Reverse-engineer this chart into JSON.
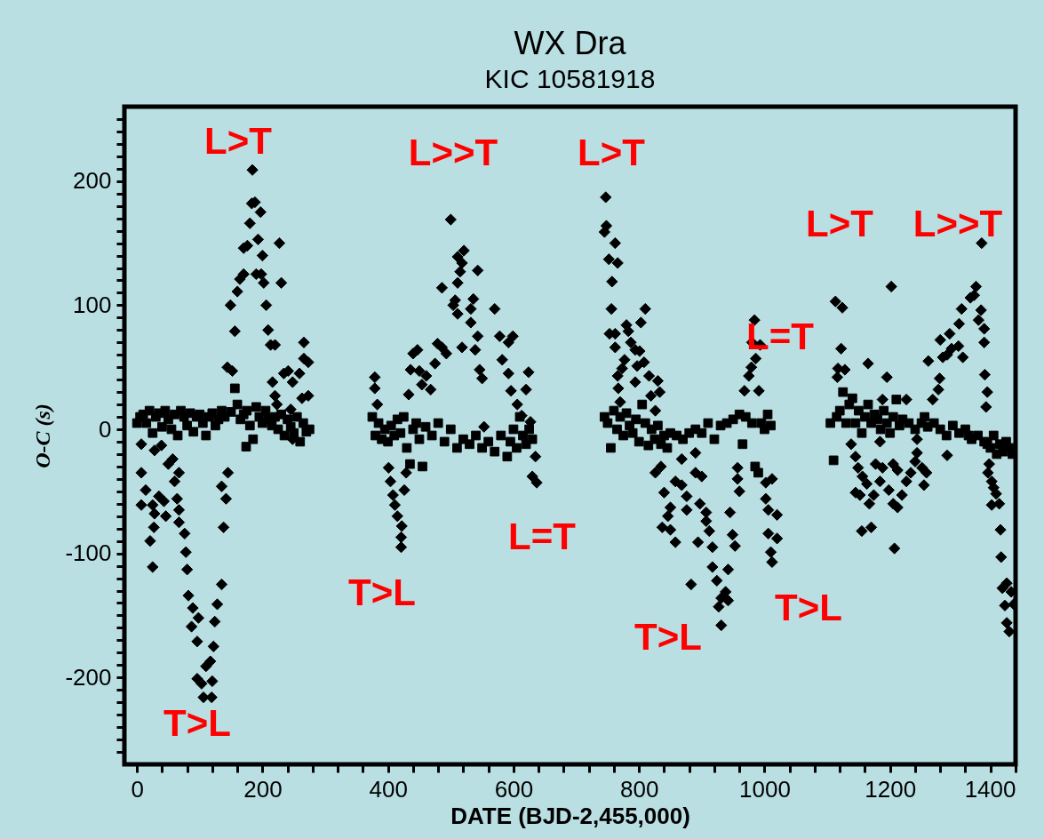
{
  "chart_data": {
    "type": "scatter",
    "title": "WX Dra",
    "subtitle": "KIC 10581918",
    "xlabel": "DATE (BJD-2,455,000)",
    "ylabel": "O-C (s)",
    "xlim": [
      -20,
      1400
    ],
    "ylim": [
      -270,
      260
    ],
    "grid": false,
    "xticks": [
      0,
      {
        "value": 40,
        "label": null
      },
      {
        "value": 80,
        "label": null
      },
      {
        "value": 120,
        "label": null
      },
      {
        "value": 160,
        "label": null
      },
      200,
      {
        "value": 240,
        "label": null
      },
      {
        "value": 280,
        "label": null
      },
      {
        "value": 320,
        "label": null
      },
      {
        "value": 360,
        "label": null
      },
      400,
      {
        "value": 440,
        "label": null
      },
      {
        "value": 480,
        "label": null
      },
      {
        "value": 520,
        "label": null
      },
      {
        "value": 560,
        "label": null
      },
      600,
      {
        "value": 640,
        "label": null
      },
      {
        "value": 680,
        "label": null
      },
      {
        "value": 720,
        "label": null
      },
      {
        "value": 760,
        "label": null
      },
      800,
      {
        "value": 840,
        "label": null
      },
      {
        "value": 880,
        "label": null
      },
      {
        "value": 920,
        "label": null
      },
      {
        "value": 960,
        "label": null
      },
      1000,
      {
        "value": 1040,
        "label": null
      },
      {
        "value": 1080,
        "label": null
      },
      {
        "value": 1120,
        "label": null
      },
      {
        "value": 1160,
        "label": null
      },
      1200,
      {
        "value": 1240,
        "label": null
      },
      {
        "value": 1280,
        "label": null
      },
      {
        "value": 1320,
        "label": null
      },
      {
        "value": 1360,
        "label": null
      },
      1400
    ],
    "yticks": [
      {
        "value": -260,
        "label": null
      },
      {
        "value": -250,
        "label": null
      },
      {
        "value": -240,
        "label": null
      },
      {
        "value": -230,
        "label": null
      },
      {
        "value": -220,
        "label": null
      },
      {
        "value": -210,
        "label": null
      },
      -200,
      {
        "value": -190,
        "label": null
      },
      {
        "value": -180,
        "label": null
      },
      {
        "value": -170,
        "label": null
      },
      {
        "value": -160,
        "label": null
      },
      {
        "value": -150,
        "label": null
      },
      {
        "value": -140,
        "label": null
      },
      {
        "value": -130,
        "label": null
      },
      {
        "value": -120,
        "label": null
      },
      {
        "value": -110,
        "label": null
      },
      -100,
      {
        "value": -90,
        "label": null
      },
      {
        "value": -80,
        "label": null
      },
      {
        "value": -70,
        "label": null
      },
      {
        "value": -60,
        "label": null
      },
      {
        "value": -50,
        "label": null
      },
      {
        "value": -40,
        "label": null
      },
      {
        "value": -30,
        "label": null
      },
      {
        "value": -20,
        "label": null
      },
      {
        "value": -10,
        "label": null
      },
      0,
      {
        "value": 10,
        "label": null
      },
      {
        "value": 20,
        "label": null
      },
      {
        "value": 30,
        "label": null
      },
      {
        "value": 40,
        "label": null
      },
      {
        "value": 50,
        "label": null
      },
      {
        "value": 60,
        "label": null
      },
      {
        "value": 70,
        "label": null
      },
      {
        "value": 80,
        "label": null
      },
      {
        "value": 90,
        "label": null
      },
      100,
      {
        "value": 110,
        "label": null
      },
      {
        "value": 120,
        "label": null
      },
      {
        "value": 130,
        "label": null
      },
      {
        "value": 140,
        "label": null
      },
      {
        "value": 150,
        "label": null
      },
      {
        "value": 160,
        "label": null
      },
      {
        "value": 170,
        "label": null
      },
      {
        "value": 180,
        "label": null
      },
      {
        "value": 190,
        "label": null
      },
      200,
      {
        "value": 210,
        "label": null
      },
      {
        "value": 220,
        "label": null
      },
      {
        "value": 230,
        "label": null
      },
      {
        "value": 240,
        "label": null
      },
      {
        "value": 250,
        "label": null
      }
    ],
    "series": [
      {
        "color": "#000000",
        "marker": "diamond",
        "x": [
          7,
          28,
          39,
          7,
          14,
          7,
          25,
          28,
          35,
          43,
          46,
          27,
          21,
          25,
          50,
          57,
          60,
          67,
          64,
          67,
          67,
          76,
          78,
          80,
          82,
          89,
          87,
          98,
          96,
          96,
          103,
          106,
          119,
          110,
          117,
          120,
          122,
          124,
          128,
          135,
          138,
          142,
          135,
          145,
          144,
          152,
          149,
          156,
          160,
          164,
          170,
          170,
          176,
          180,
          183,
          184,
          188,
          197,
          193,
          190,
          198,
          202,
          200,
          206,
          209,
          213,
          220,
          227,
          230,
          216,
          223,
          220,
          234,
          241,
          248,
          259,
          266,
          266,
          273,
          273,
          263,
          245,
          248,
          379,
          379,
          383,
          401,
          404,
          408,
          411,
          415,
          422,
          421,
          421,
          426,
          429,
          433,
          436,
          440,
          447,
          450,
          454,
          461,
          468,
          475,
          479,
          486,
          486,
          493,
          500,
          504,
          521,
          511,
          518,
          515,
          511,
          543,
          507,
          536,
          511,
          532,
          532,
          543,
          518,
          539,
          546,
          550,
          553,
          570,
          578,
          592,
          599,
          582,
          592,
          596,
          606,
          613,
          624,
          620,
          627,
          635,
          630,
          637,
          747,
          748,
          745,
          762,
          752,
          766,
          757,
          756,
          810,
          753,
          762,
          780,
          783,
          803,
          762,
          787,
          794,
          777,
          801,
          773,
          797,
          808,
          766,
          794,
          816,
          830,
          767,
          770,
          819,
          833,
          826,
          826,
          835,
          868,
          890,
          840,
          858,
          868,
          876,
          890,
          900,
          850,
          846,
          876,
          897,
          907,
          837,
          850,
          907,
          858,
          894,
          912,
          917,
          883,
          917,
          924,
          931,
          927,
          931,
          942,
          938,
          942,
          945,
          949,
          953,
          957,
          957,
          960,
          968,
          975,
          979,
          986,
          993,
          980,
          984,
          991,
          1002,
          1012,
          1002,
          1006,
          1020,
          1006,
          1020,
          1010,
          1012,
          1113,
          1124,
          1202,
          1122,
          1117,
          1128,
          1116,
          1165,
          1195,
          1138,
          1145,
          1149,
          1156,
          1163,
          1145,
          1152,
          1174,
          1167,
          1155,
          1170,
          1184,
          1177,
          1188,
          1184,
          1205,
          1212,
          1198,
          1205,
          1212,
          1219,
          1226,
          1233,
          1240,
          1243,
          1243,
          1251,
          1258,
          1254,
          1207,
          1188,
          1226,
          1261,
          1280,
          1279,
          1277,
          1268,
          1291,
          1284,
          1298,
          1309,
          1295,
          1310,
          1316,
          1314,
          1328,
          1337,
          1334,
          1345,
          1341,
          1350,
          1350,
          1346,
          1351,
          1355,
          1353,
          1291,
          1358,
          1356,
          1362,
          1365,
          1369,
          1362,
          1374,
          1376,
          1377,
          1379,
          1386,
          1393,
          1383,
          1397,
          1386,
          1390
        ],
        "values": [
          -12,
          -17,
          -13,
          -35,
          -49,
          -61,
          -61,
          -68,
          -54,
          -58,
          -70,
          -79,
          -90,
          -111,
          -28,
          -24,
          -42,
          -35,
          -56,
          -65,
          -75,
          -84,
          -99,
          -113,
          -134,
          -144,
          -159,
          -152,
          -171,
          -201,
          -205,
          -216,
          -216,
          -191,
          -187,
          -203,
          -175,
          -155,
          -141,
          -125,
          -79,
          -56,
          -46,
          -35,
          50,
          47,
          100,
          79,
          111,
          121,
          125,
          146,
          148,
          166,
          182,
          209,
          183,
          175,
          153,
          125,
          125,
          118,
          140,
          100,
          80,
          68,
          68,
          150,
          118,
          38,
          20,
          27,
          45,
          47,
          38,
          45,
          70,
          57,
          54,
          27,
          25,
          16,
          -8,
          42,
          33,
          20,
          -31,
          -42,
          -53,
          -61,
          -70,
          -78,
          -87,
          -95,
          -49,
          -35,
          28,
          48,
          61,
          64,
          47,
          36,
          43,
          32,
          53,
          69,
          114,
          66,
          61,
          169,
          100,
          144,
          139,
          134,
          127,
          118,
          128,
          104,
          105,
          93,
          97,
          86,
          75,
          66,
          64,
          48,
          41,
          2,
          97,
          75,
          70,
          75,
          56,
          45,
          31,
          20,
          11,
          46,
          32,
          6,
          -22,
          -38,
          -43,
          187,
          164,
          159,
          150,
          137,
          134,
          119,
          97,
          97,
          77,
          77,
          84,
          79,
          86,
          66,
          70,
          64,
          56,
          63,
          49,
          51,
          54,
          43,
          38,
          43,
          39,
          33,
          22,
          27,
          30,
          15,
          -35,
          -30,
          -24,
          -19,
          -51,
          -42,
          -45,
          -54,
          -35,
          -38,
          -63,
          -70,
          -65,
          -60,
          -67,
          -79,
          -81,
          -74,
          -91,
          -91,
          -82,
          -95,
          -125,
          -111,
          -122,
          -136,
          -143,
          -158,
          -113,
          -131,
          -138,
          -67,
          -85,
          -94,
          -31,
          -40,
          -50,
          31,
          43,
          50,
          57,
          68,
          70,
          88,
          31,
          -43,
          -40,
          -56,
          -65,
          -69,
          -84,
          -88,
          -99,
          -107,
          103,
          98,
          115,
          65,
          49,
          48,
          42,
          53,
          42,
          -12,
          -22,
          -31,
          -38,
          -44,
          -51,
          -53,
          -53,
          -60,
          -82,
          -79,
          -10,
          -28,
          -31,
          -42,
          -28,
          -33,
          -49,
          -60,
          -63,
          -53,
          -42,
          -35,
          -26,
          -19,
          -8,
          -31,
          -35,
          -45,
          -96,
          24,
          24,
          55,
          72,
          41,
          32,
          24,
          60,
          58,
          65,
          67,
          77,
          85,
          58,
          97,
          106,
          115,
          108,
          96,
          88,
          81,
          70,
          150,
          44,
          30,
          18,
          -21,
          -28,
          -35,
          -42,
          -47,
          -52,
          -61,
          -60,
          -81,
          -103,
          -128,
          -124,
          -131,
          -142,
          -141,
          -156,
          -163
        ]
      },
      {
        "color": "#000000",
        "marker": "square",
        "x": [
          0,
          5,
          10,
          15,
          20,
          25,
          30,
          35,
          40,
          45,
          50,
          55,
          60,
          65,
          70,
          75,
          80,
          85,
          90,
          95,
          100,
          105,
          110,
          115,
          120,
          125,
          130,
          135,
          140,
          150,
          156,
          160,
          165,
          170,
          174,
          175,
          180,
          185,
          190,
          195,
          200,
          205,
          210,
          215,
          220,
          225,
          230,
          235,
          240,
          245,
          250,
          255,
          260,
          265,
          270,
          275,
          375,
          380,
          385,
          390,
          395,
          400,
          405,
          410,
          415,
          420,
          425,
          430,
          435,
          440,
          445,
          450,
          455,
          460,
          470,
          480,
          490,
          500,
          510,
          520,
          530,
          540,
          550,
          560,
          570,
          580,
          590,
          595,
          600,
          605,
          610,
          615,
          620,
          625,
          630,
          745,
          750,
          755,
          760,
          765,
          770,
          775,
          780,
          785,
          790,
          795,
          800,
          805,
          810,
          815,
          820,
          825,
          830,
          835,
          840,
          845,
          850,
          860,
          870,
          880,
          890,
          900,
          910,
          920,
          930,
          940,
          950,
          960,
          965,
          970,
          980,
          985,
          990,
          995,
          1000,
          1005,
          1010,
          1105,
          1110,
          1115,
          1120,
          1125,
          1130,
          1135,
          1140,
          1145,
          1150,
          1155,
          1160,
          1165,
          1170,
          1175,
          1180,
          1185,
          1190,
          1195,
          1200,
          1205,
          1210,
          1215,
          1220,
          1230,
          1240,
          1250,
          1255,
          1260,
          1270,
          1280,
          1290,
          1300,
          1310,
          1320,
          1325,
          1330,
          1340,
          1350,
          1355,
          1360,
          1365,
          1370,
          1375,
          1380,
          1385,
          1390,
          1395
        ],
        "values": [
          5,
          10,
          12,
          5,
          15,
          -3,
          10,
          13,
          2,
          15,
          8,
          0,
          12,
          -5,
          15,
          10,
          3,
          13,
          -2,
          10,
          12,
          5,
          -5,
          10,
          13,
          3,
          8,
          15,
          10,
          14,
          33,
          20,
          8,
          12,
          -14,
          15,
          3,
          -8,
          18,
          10,
          5,
          15,
          8,
          3,
          10,
          0,
          12,
          -5,
          8,
          2,
          -3,
          10,
          -10,
          5,
          -2,
          0,
          10,
          -5,
          5,
          -8,
          0,
          -10,
          3,
          -5,
          8,
          -3,
          10,
          -15,
          -28,
          0,
          5,
          -8,
          -30,
          2,
          -5,
          5,
          -10,
          0,
          -15,
          -8,
          -12,
          -5,
          -15,
          -10,
          -18,
          -5,
          -22,
          -10,
          0,
          -15,
          10,
          -5,
          -12,
          0,
          -8,
          10,
          5,
          -15,
          15,
          0,
          10,
          -5,
          13,
          3,
          -3,
          8,
          -10,
          20,
          5,
          -13,
          0,
          -8,
          3,
          -12,
          -5,
          -15,
          -3,
          -5,
          -8,
          -3,
          0,
          -3,
          5,
          -8,
          3,
          5,
          8,
          12,
          -12,
          10,
          5,
          -30,
          -35,
          5,
          0,
          12,
          3,
          5,
          -25,
          10,
          15,
          30,
          5,
          20,
          25,
          5,
          15,
          -3,
          10,
          20,
          5,
          12,
          8,
          0,
          15,
          5,
          -3,
          10,
          24,
          3,
          8,
          5,
          0,
          5,
          10,
          2,
          5,
          0,
          -5,
          3,
          -3,
          0,
          -5,
          -8,
          -5,
          -10,
          -12,
          -15,
          -5,
          -20,
          -12,
          -18,
          -10,
          -15,
          -20
        ]
      }
    ],
    "annotations": [
      "L>T",
      "T>L",
      "L>>T",
      "T>L",
      "L=T",
      "L>T",
      "T>L",
      "L=T",
      "T>L",
      "L>T",
      "L>>T"
    ]
  }
}
